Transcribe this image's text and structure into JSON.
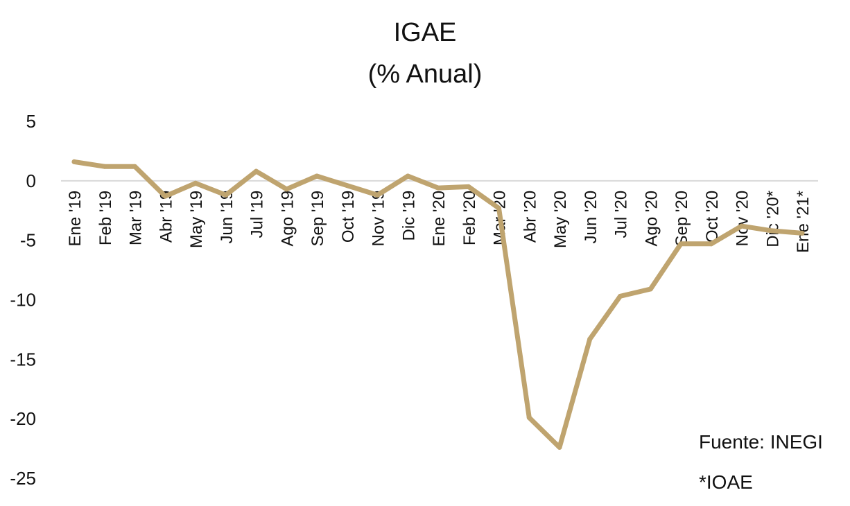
{
  "chart_data": {
    "type": "line",
    "title": "IGAE",
    "subtitle": "(% Anual)",
    "xlabel": "",
    "ylabel": "",
    "ylim": [
      -25,
      5
    ],
    "yticks": [
      "5",
      "0",
      "-5",
      "-10",
      "-15",
      "-20",
      "-25"
    ],
    "ytick_values": [
      5,
      0,
      -5,
      -10,
      -15,
      -20,
      -25
    ],
    "grid": false,
    "legend": "none",
    "categories": [
      "Ene '19",
      "Feb '19",
      "Mar '19",
      "Abr '19",
      "May '19",
      "Jun '19",
      "Jul '19",
      "Ago '19",
      "Sep '19",
      "Oct '19",
      "Nov '19",
      "Dic '19",
      "Ene '20",
      "Feb '20",
      "Mar '20",
      "Abr '20",
      "May '20",
      "Jun '20",
      "Jul '20",
      "Ago '20",
      "Sep '20",
      "Oct '20",
      "Nov '20",
      "Dic '20*",
      "Ene '21*"
    ],
    "series": [
      {
        "values": [
          1.6,
          1.2,
          1.2,
          -1.3,
          -0.2,
          -1.2,
          0.8,
          -0.7,
          0.4,
          -0.4,
          -1.2,
          0.4,
          -0.6,
          -0.5,
          -2.3,
          -19.9,
          -22.4,
          -13.3,
          -9.7,
          -9.1,
          -5.3,
          -5.3,
          -3.8,
          -4.2,
          -4.4
        ],
        "color": "#bfa46f"
      }
    ],
    "axis_color": "#d9d9d9",
    "annotations": [
      "Fuente: INEGI",
      "*IOAE"
    ]
  }
}
